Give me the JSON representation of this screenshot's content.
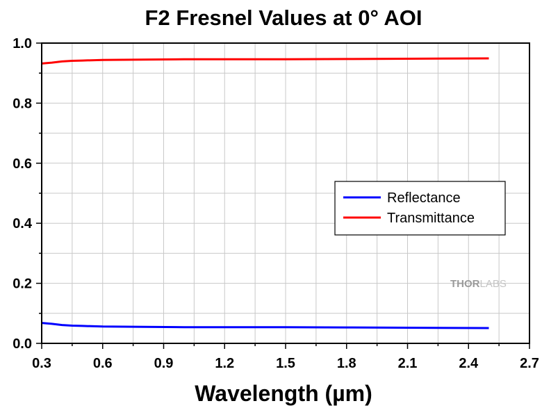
{
  "chart_data": {
    "type": "line",
    "title": "F2 Fresnel Values at 0° AOI",
    "xlabel": "Wavelength (µm)",
    "ylabel": "",
    "xlim": [
      0.3,
      2.7
    ],
    "ylim": [
      0.0,
      1.0
    ],
    "xticks": [
      "0.3",
      "0.6",
      "0.9",
      "1.2",
      "1.5",
      "1.8",
      "2.1",
      "2.4",
      "2.7"
    ],
    "yticks": [
      "0.0",
      "0.2",
      "0.4",
      "0.6",
      "0.8",
      "1.0"
    ],
    "grid": true,
    "legend_position": "center-right",
    "series": [
      {
        "name": "Reflectance",
        "color": "#0000ff",
        "x": [
          0.3,
          0.35,
          0.4,
          0.45,
          0.5,
          0.6,
          0.8,
          1.0,
          1.2,
          1.5,
          1.8,
          2.1,
          2.5
        ],
        "y": [
          0.068,
          0.065,
          0.061,
          0.059,
          0.058,
          0.056,
          0.055,
          0.054,
          0.054,
          0.054,
          0.053,
          0.052,
          0.051
        ]
      },
      {
        "name": "Transmittance",
        "color": "#ff0000",
        "x": [
          0.3,
          0.35,
          0.4,
          0.45,
          0.5,
          0.6,
          0.8,
          1.0,
          1.2,
          1.5,
          1.8,
          2.1,
          2.5
        ],
        "y": [
          0.932,
          0.935,
          0.939,
          0.941,
          0.942,
          0.944,
          0.945,
          0.946,
          0.946,
          0.946,
          0.947,
          0.948,
          0.949
        ]
      }
    ]
  },
  "watermark": {
    "part1": "THOR",
    "part2": "LABS"
  }
}
